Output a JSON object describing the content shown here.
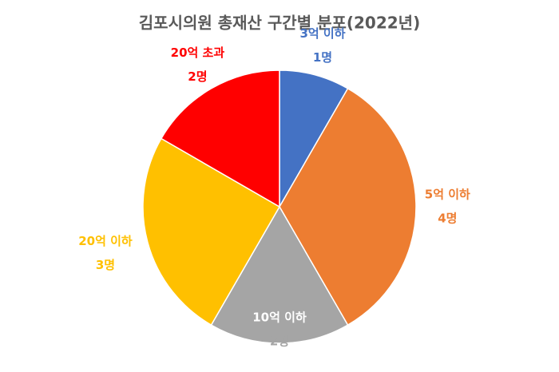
{
  "chart_data": {
    "type": "pie",
    "title": "김포시의원 총재산 구간별 분포(2022년)",
    "categories": [
      "3억 이하",
      "5억 이하",
      "10억 이하",
      "20억 이하",
      "20억 초과"
    ],
    "values": [
      1,
      4,
      2,
      3,
      2
    ],
    "value_labels": [
      "1명",
      "4명",
      "2명",
      "3명",
      "2명"
    ],
    "colors": [
      "#4472c4",
      "#ed7d31",
      "#a5a5a5",
      "#ffc000",
      "#ff0000"
    ]
  }
}
